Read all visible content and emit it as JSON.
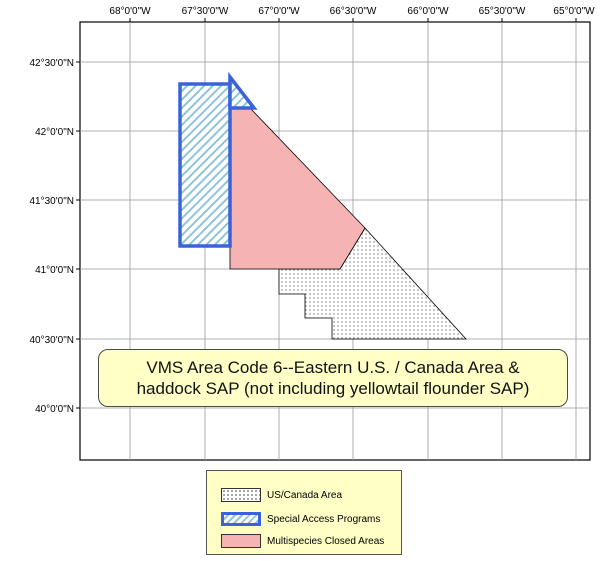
{
  "map": {
    "lon_labels": [
      "68°0'0\"W",
      "67°30'0\"W",
      "67°0'0\"W",
      "66°30'0\"W",
      "66°0'0\"W",
      "65°30'0\"W",
      "65°0'0\"W"
    ],
    "lat_labels": [
      "42°30'0\"N",
      "42°0'0\"N",
      "41°30'0\"N",
      "41°0'0\"N",
      "40°30'0\"N",
      "40°0'0\"N"
    ],
    "colors": {
      "closed_area_fill": "#f5b3b3",
      "special_access_border": "#3a63d8",
      "special_access_hatch": "#8fc4d8",
      "us_canada_dots": "#555555",
      "caption_background": "#ffffc6"
    }
  },
  "caption": {
    "line1": "VMS Area Code 6--Eastern U.S. / Canada Area &",
    "line2": "haddock SAP (not including yellowtail flounder SAP)"
  },
  "legend": {
    "items": [
      {
        "label": "US/Canada Area",
        "swatch": "stipple-dots"
      },
      {
        "label": "Special Access Programs",
        "swatch": "blue-hatch"
      },
      {
        "label": "Multispecies Closed Areas",
        "swatch": "pink-fill"
      }
    ]
  }
}
